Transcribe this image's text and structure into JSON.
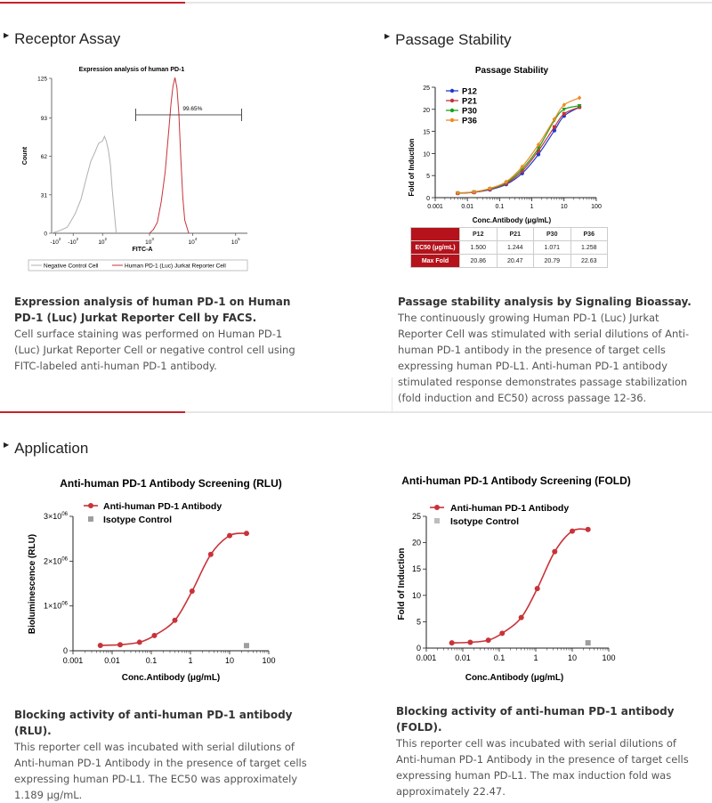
{
  "sections": {
    "receptor": {
      "title": "Receptor Assay",
      "caption_bold": "Expression analysis of human PD-1 on Human PD-1 (Luc) Jurkat Reporter Cell by FACS.",
      "caption": "Cell surface staining was performed on Human PD-1 (Luc) Jurkat Reporter Cell or negative control cell using FITC-labeled anti-human PD-1 antibody."
    },
    "passage": {
      "title": "Passage Stability",
      "caption_bold": "Passage stability analysis by Signaling Bioassay.",
      "caption": "The continuously growing Human PD-1 (Luc) Jurkat Reporter Cell was stimulated with serial dilutions of Anti-human PD-1 antibody in the presence of target cells expressing human PD-L1. Anti-human PD-1 antibody stimulated response demonstrates passage stabilization (fold induction and EC50) across passage 12-36."
    },
    "application": {
      "title": "Application",
      "rlu_caption_bold": "Blocking activity of anti-human PD-1 antibody (RLU).",
      "rlu_caption": "This reporter cell was incubated with serial dilutions of Anti-human PD-1 Antibody in the presence of target cells expressing human PD-L1. The EC50 was approximately 1.189 μg/mL.",
      "fold_caption_bold": "Blocking activity of anti-human PD-1 antibody (FOLD).",
      "fold_caption": "This reporter cell was incubated with serial dilutions of Anti-human PD-1 Antibody in the presence of target cells expressing human PD-L1. The max induction fold was approximately 22.47."
    }
  },
  "colors": {
    "accent": "#c8212a",
    "table_header": "#b5121b",
    "curve_red": "#c8333a",
    "isotype_gray": "#9e9e9e",
    "negative_gray": "#b0b0b0"
  },
  "chart_data": [
    {
      "id": "facs",
      "type": "area",
      "title": "Expression analysis of human PD-1",
      "xlabel": "FITC-A",
      "ylabel": "Count",
      "yticks": [
        "0",
        "31",
        "62",
        "93",
        "125"
      ],
      "xticks": [
        "-10²",
        "-10²",
        "10²",
        "10³",
        "10⁴",
        "10⁵"
      ],
      "ylim": [
        0,
        125
      ],
      "gate_label": "99.65%",
      "legend": [
        "Negative Control Cell",
        "Human PD-1 (Luc) Jurkat Reporter Cell"
      ],
      "series": [
        {
          "name": "Negative Control Cell",
          "peak_count": 77,
          "x": [
            0.0,
            0.04,
            0.08,
            0.12,
            0.15,
            0.18,
            0.2,
            0.22,
            0.24,
            0.26,
            0.27,
            0.28,
            0.29,
            0.3,
            0.31,
            0.33
          ],
          "y": [
            0,
            2,
            6,
            15,
            28,
            45,
            58,
            66,
            72,
            75,
            77,
            74,
            68,
            55,
            35,
            0
          ]
        },
        {
          "name": "Human PD-1 (Luc) Jurkat Reporter Cell",
          "peak_count": 125,
          "x": [
            0.5,
            0.52,
            0.54,
            0.56,
            0.58,
            0.6,
            0.61,
            0.62,
            0.63,
            0.64,
            0.65,
            0.66,
            0.67,
            0.68,
            0.7
          ],
          "y": [
            0,
            3,
            10,
            25,
            50,
            85,
            105,
            120,
            125,
            118,
            95,
            60,
            30,
            10,
            0
          ]
        }
      ]
    },
    {
      "id": "passage",
      "type": "line",
      "title": "Passage Stability",
      "xlabel": "Conc.Antibody (μg/mL)",
      "ylabel": "Fold of Induction",
      "xscale": "log",
      "xlim": [
        0.001,
        100
      ],
      "ylim": [
        0,
        25
      ],
      "xticks": [
        "0.001",
        "0.01",
        "0.1",
        "1",
        "10",
        "100"
      ],
      "yticks": [
        "0",
        "5",
        "10",
        "15",
        "20",
        "25"
      ],
      "x": [
        0.005,
        0.016,
        0.05,
        0.16,
        0.5,
        1.6,
        5,
        10,
        30
      ],
      "series": [
        {
          "name": "P12",
          "color": "#1f3bcc",
          "values": [
            1.0,
            1.2,
            1.8,
            3.0,
            5.5,
            9.8,
            15.2,
            18.5,
            20.5
          ]
        },
        {
          "name": "P21",
          "color": "#c8333a",
          "values": [
            1.0,
            1.2,
            1.9,
            3.2,
            6.0,
            10.6,
            16.0,
            19.0,
            20.5
          ]
        },
        {
          "name": "P30",
          "color": "#1aa31a",
          "values": [
            1.0,
            1.3,
            2.0,
            3.4,
            6.5,
            11.2,
            17.5,
            20.0,
            20.8
          ]
        },
        {
          "name": "P36",
          "color": "#f08a24",
          "values": [
            1.1,
            1.3,
            2.1,
            3.6,
            7.0,
            12.0,
            17.8,
            21.0,
            22.6
          ]
        }
      ],
      "table": {
        "columns": [
          "",
          "P12",
          "P21",
          "P30",
          "P36"
        ],
        "rows": [
          [
            "EC50 (μg/mL)",
            "1.500",
            "1.244",
            "1.071",
            "1.258"
          ],
          [
            "Max Fold",
            "20.86",
            "20.47",
            "20.79",
            "22.63"
          ]
        ]
      }
    },
    {
      "id": "rlu",
      "type": "line",
      "title": "Anti-human PD-1 Antibody Screening (RLU)",
      "xlabel": "Conc.Antibody (μg/mL)",
      "ylabel": "Bioluminescence (RLU)",
      "xscale": "log",
      "xlim": [
        0.001,
        100
      ],
      "ylim": [
        0,
        3000000
      ],
      "xticks": [
        "0.001",
        "0.01",
        "0.1",
        "1",
        "10",
        "100"
      ],
      "ytick_values": [
        0,
        1000000,
        2000000,
        3000000
      ],
      "yticks": [
        {
          "m": "0",
          "e": ""
        },
        {
          "m": "1×10",
          "e": "06"
        },
        {
          "m": "2×10",
          "e": "06"
        },
        {
          "m": "3×10",
          "e": "06"
        }
      ],
      "x": [
        0.005,
        0.016,
        0.05,
        0.12,
        0.4,
        1.1,
        3.3,
        10,
        27
      ],
      "series": [
        {
          "name": "Anti-human PD-1 Antibody",
          "color": "#c8333a",
          "values": [
            120000,
            135000,
            190000,
            340000,
            680000,
            1330000,
            2150000,
            2570000,
            2620000
          ]
        },
        {
          "name": "Isotype Control",
          "color": "#9e9e9e",
          "x": [
            27
          ],
          "values": [
            115000
          ]
        }
      ],
      "legend": [
        "Anti-human PD-1 Antibody",
        "Isotype Control"
      ]
    },
    {
      "id": "fold",
      "type": "line",
      "title": "Anti-human PD-1 Antibody Screening (FOLD)",
      "xlabel": "Conc.Antibody (μg/mL)",
      "ylabel": "Fold of Induction",
      "xscale": "log",
      "xlim": [
        0.001,
        100
      ],
      "ylim": [
        0,
        25
      ],
      "xticks": [
        "0.001",
        "0.01",
        "0.1",
        "1",
        "10",
        "100"
      ],
      "yticks": [
        "0",
        "5",
        "10",
        "15",
        "20",
        "25"
      ],
      "x": [
        0.005,
        0.016,
        0.05,
        0.12,
        0.4,
        1.1,
        3.3,
        10,
        27
      ],
      "series": [
        {
          "name": "Anti-human PD-1 Antibody",
          "color": "#c8333a",
          "values": [
            1.0,
            1.1,
            1.5,
            2.8,
            5.8,
            11.3,
            18.3,
            22.2,
            22.5
          ]
        },
        {
          "name": "Isotype Control",
          "color": "#9e9e9e",
          "x": [
            27
          ],
          "values": [
            1.0
          ]
        }
      ],
      "legend": [
        "Anti-human PD-1 Antibody",
        "Isotype Control"
      ]
    }
  ]
}
